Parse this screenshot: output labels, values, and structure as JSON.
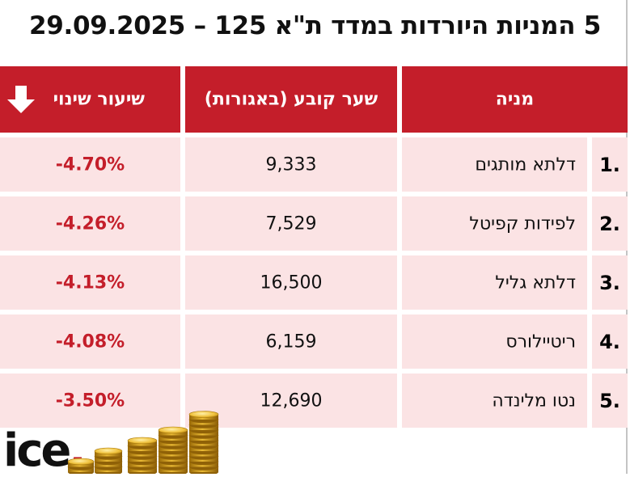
{
  "title": "5 המניות היורדות במדד ת\"א 125 – 29.09.2025",
  "header": {
    "stock": "מניה",
    "price": "שער קובע (באגורות)",
    "change": "שיעור שינוי"
  },
  "rows": [
    {
      "rank": "1.",
      "name": "דלתא מותגים",
      "price": "9,333",
      "change": "-4.70%"
    },
    {
      "rank": "2.",
      "name": "לפידות קפיטל",
      "price": "7,529",
      "change": "-4.26%"
    },
    {
      "rank": "3.",
      "name": "דלתא גליל",
      "price": "16,500",
      "change": "-4.13%"
    },
    {
      "rank": "4.",
      "name": "ריטיילורס",
      "price": "6,159",
      "change": "-4.08%"
    },
    {
      "rank": "5.",
      "name": "נטו מלינדה",
      "price": "12,690",
      "change": "-3.50%"
    }
  ],
  "logo": {
    "text": "ice",
    "dot": "."
  },
  "icons": {
    "sort": "down-arrow-icon",
    "decor": "gold-coins-icon"
  },
  "colors": {
    "accent": "#c41e2a",
    "row_bg": "#fbe3e4"
  }
}
